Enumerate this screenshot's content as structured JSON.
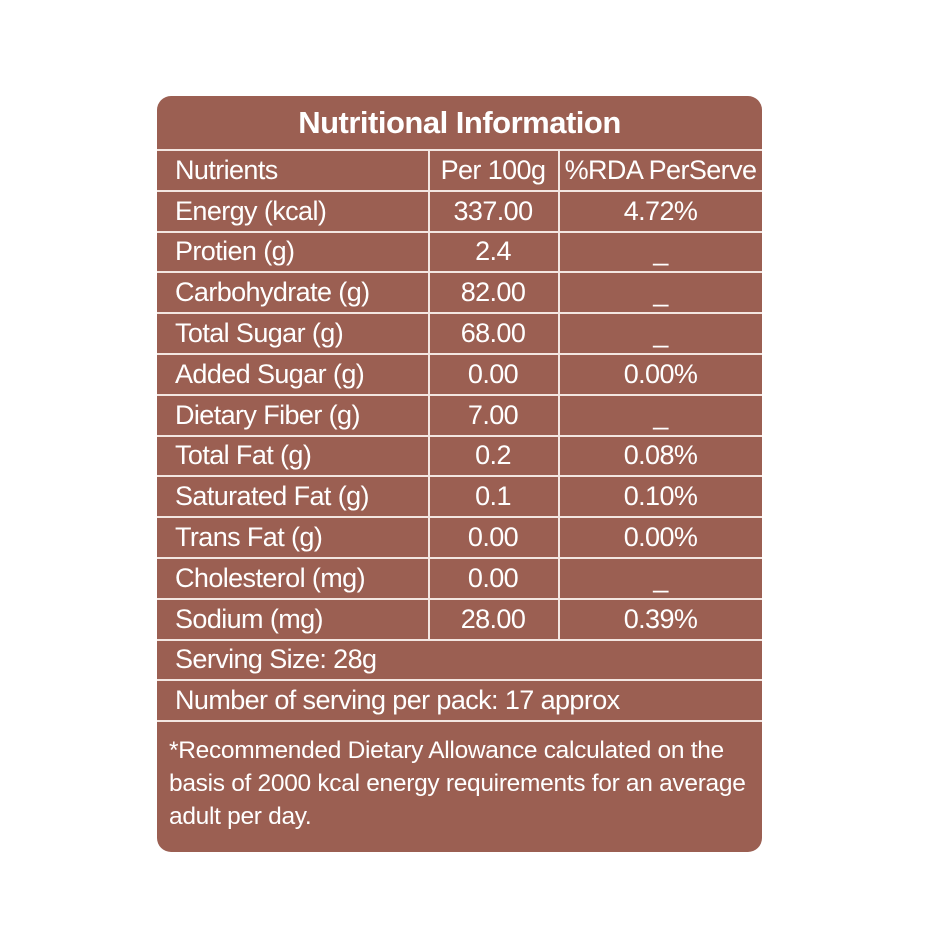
{
  "colors": {
    "panel_bg": "#9b5f52",
    "text": "#ffffff",
    "lines": "#f3e6e1"
  },
  "title": "Nutritional Information",
  "headers": [
    "Nutrients",
    "Per 100g",
    "%RDA PerServe"
  ],
  "rows": [
    {
      "nutrient": "Energy (kcal)",
      "per100g": "337.00",
      "rda": "4.72%"
    },
    {
      "nutrient": "Protien (g)",
      "per100g": "2.4",
      "rda": "_"
    },
    {
      "nutrient": "Carbohydrate (g)",
      "per100g": "82.00",
      "rda": "_"
    },
    {
      "nutrient": "Total Sugar (g)",
      "per100g": "68.00",
      "rda": "_"
    },
    {
      "nutrient": "Added Sugar (g)",
      "per100g": "0.00",
      "rda": "0.00%"
    },
    {
      "nutrient": "Dietary Fiber (g)",
      "per100g": "7.00",
      "rda": "_"
    },
    {
      "nutrient": "Total Fat (g)",
      "per100g": "0.2",
      "rda": "0.08%"
    },
    {
      "nutrient": "Saturated Fat (g)",
      "per100g": "0.1",
      "rda": "0.10%"
    },
    {
      "nutrient": "Trans Fat (g)",
      "per100g": "0.00",
      "rda": "0.00%"
    },
    {
      "nutrient": "Cholesterol (mg)",
      "per100g": "0.00",
      "rda": "_"
    },
    {
      "nutrient": "Sodium (mg)",
      "per100g": "28.00",
      "rda": "0.39%"
    }
  ],
  "serving_size": "Serving Size: 28g",
  "servings_per_pack": "Number of serving per pack: 17 approx",
  "footnote": "*Recommended Dietary Allowance calculated on the basis of 2000 kcal energy requirements for an average adult per day."
}
